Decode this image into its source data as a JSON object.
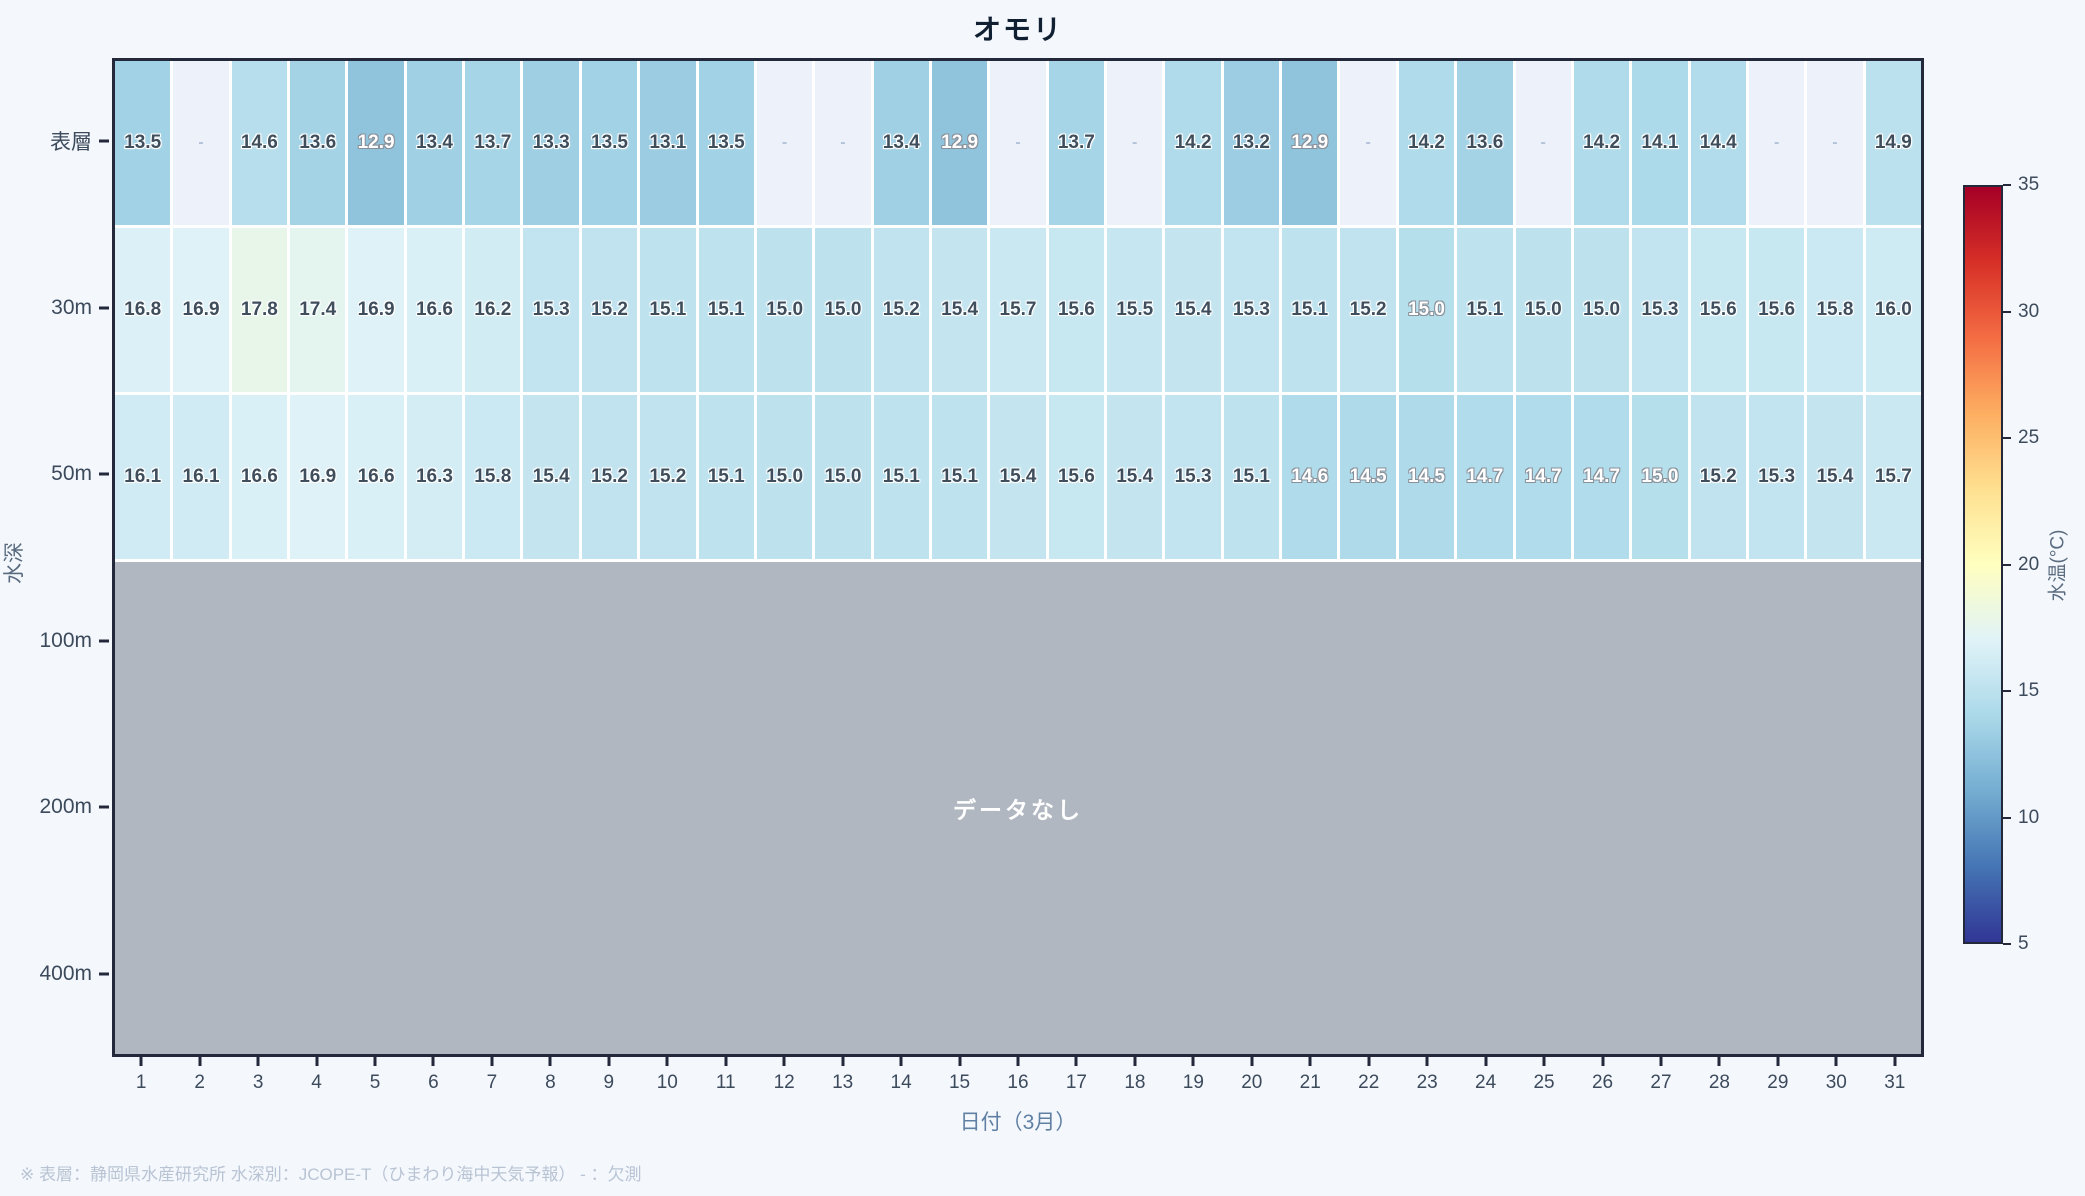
{
  "title": "オモリ",
  "footnote": "※ 表層：静岡県水産研究所  水深別：JCOPE-T（ひまわり海中天気予報）  - ：欠測",
  "colors": {
    "page_bg": "#f4f8fd",
    "spine": "#23293a",
    "missing_cell_bg": "#edf2fa",
    "nodata_bg": "#b0b7c0",
    "cell_text_dark": "#3f4e5c",
    "cell_text_light": "#ffffff",
    "axis_title": "#5f7fa3",
    "tick_label": "#3c4a5c",
    "footnote_color": "#b8c3d3"
  },
  "chart_data": {
    "type": "heatmap",
    "title": "オモリ",
    "xlabel": "日付（3月）",
    "ylabel": "水深",
    "colorbar_label": "水温(°C)",
    "colorbar_ticks": [
      35,
      30,
      25,
      20,
      15,
      10,
      5
    ],
    "colorbar_range": [
      5,
      35
    ],
    "colormap": "RdYlBu_r",
    "colormap_stops": [
      "#313695",
      "#4575b4",
      "#74add1",
      "#abd9e9",
      "#e0f3f8",
      "#ffffbf",
      "#fee090",
      "#fdae61",
      "#f46d43",
      "#d73027",
      "#a50026"
    ],
    "x_categories": [
      "1",
      "2",
      "3",
      "4",
      "5",
      "6",
      "7",
      "8",
      "9",
      "10",
      "11",
      "12",
      "13",
      "14",
      "15",
      "16",
      "17",
      "18",
      "19",
      "20",
      "21",
      "22",
      "23",
      "24",
      "25",
      "26",
      "27",
      "28",
      "29",
      "30",
      "31"
    ],
    "y_categories": [
      "表層",
      "30m",
      "50m",
      "100m",
      "200m",
      "400m"
    ],
    "missing_marker": "-",
    "no_data_label": "データなし",
    "no_data_rows": [
      "100m",
      "200m",
      "400m"
    ],
    "series": [
      {
        "name": "表層",
        "values": [
          13.5,
          null,
          14.6,
          13.6,
          12.9,
          13.4,
          13.7,
          13.3,
          13.5,
          13.1,
          13.5,
          null,
          null,
          13.4,
          12.9,
          null,
          13.7,
          null,
          14.2,
          13.2,
          12.9,
          null,
          14.2,
          13.6,
          null,
          14.2,
          14.1,
          14.4,
          null,
          null,
          14.9
        ],
        "white_text_indices": [
          4,
          14,
          20
        ]
      },
      {
        "name": "30m",
        "values": [
          16.8,
          16.9,
          17.8,
          17.4,
          16.9,
          16.6,
          16.2,
          15.3,
          15.2,
          15.1,
          15.1,
          15.0,
          15.0,
          15.2,
          15.4,
          15.7,
          15.6,
          15.5,
          15.4,
          15.3,
          15.1,
          15.2,
          15.0,
          15.1,
          15.0,
          15.0,
          15.3,
          15.6,
          15.6,
          15.8,
          16.0
        ],
        "white_text_indices": [
          22
        ]
      },
      {
        "name": "50m",
        "values": [
          16.1,
          16.1,
          16.6,
          16.9,
          16.6,
          16.3,
          15.8,
          15.4,
          15.2,
          15.2,
          15.1,
          15.0,
          15.0,
          15.1,
          15.1,
          15.4,
          15.6,
          15.4,
          15.3,
          15.1,
          14.6,
          14.5,
          14.5,
          14.7,
          14.7,
          14.7,
          15.0,
          15.2,
          15.3,
          15.4,
          15.7
        ],
        "white_text_indices": [
          20,
          21,
          22,
          23,
          24,
          25,
          26
        ]
      }
    ]
  }
}
